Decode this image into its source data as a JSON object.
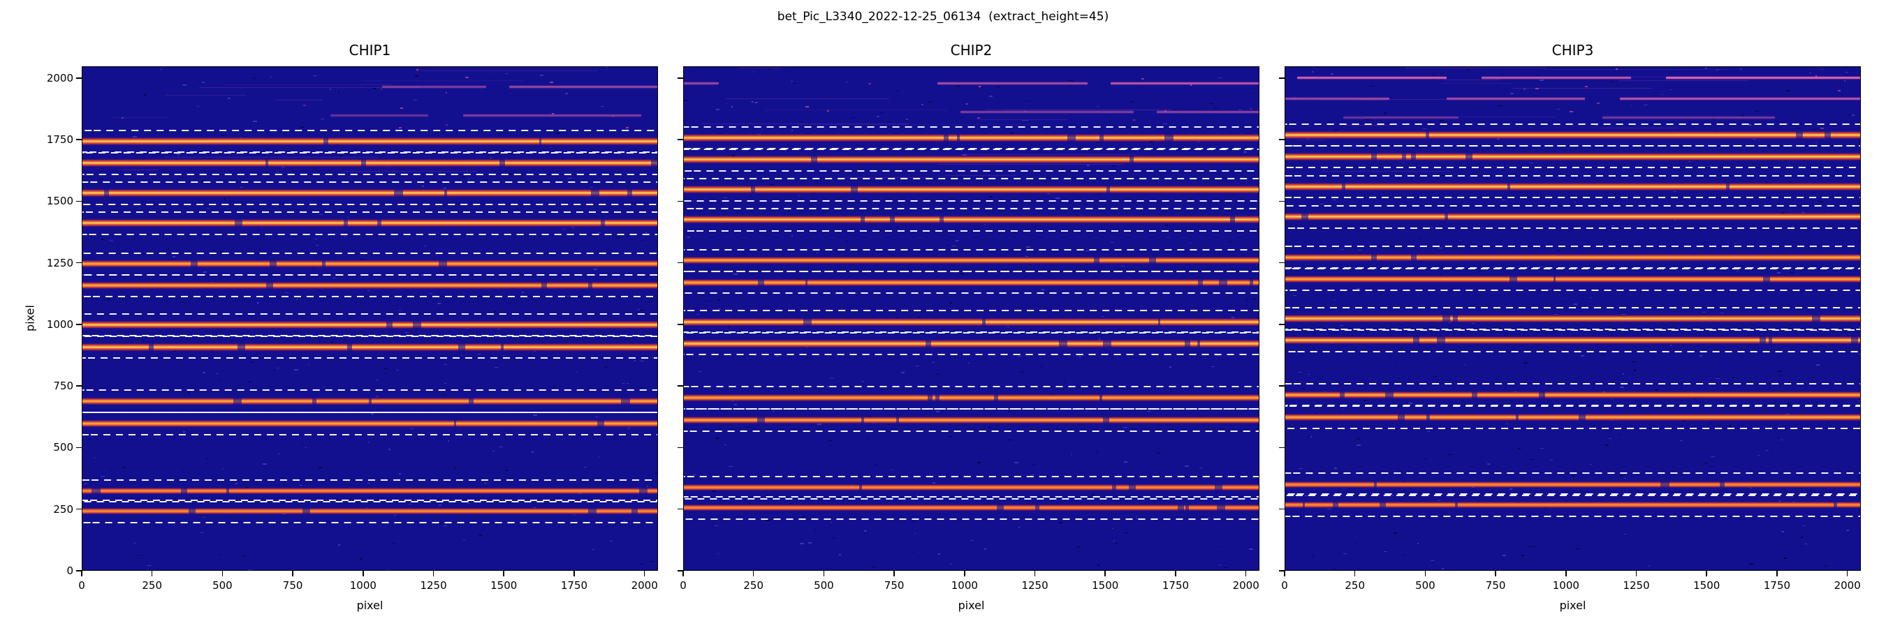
{
  "figure": {
    "suptitle": "bet_Pic_L3340_2022-12-25_06134  (extract_height=45)",
    "background": "#ffffff"
  },
  "axes": {
    "xlabel": "pixel",
    "ylabel": "pixel",
    "xlim": [
      0,
      2048
    ],
    "ylim": [
      0,
      2048
    ],
    "xticks": [
      0,
      250,
      500,
      750,
      1000,
      1250,
      1500,
      1750,
      2000
    ],
    "yticks": [
      0,
      250,
      500,
      750,
      1000,
      1250,
      1500,
      1750,
      2000
    ],
    "grid": false
  },
  "style": {
    "image_background": "#13108f",
    "order_core_bright": "#ffdf6b",
    "order_core_medium": "#ffb847",
    "order_core_dim": "#ff8f3a",
    "order_mid": "#f07022",
    "order_edge_rgba": "rgba(192,40,80,0.85)",
    "faint_emission": "#f0559f",
    "faint_emission_core": "#ff9ccf",
    "extraction_dash": "#ffffff",
    "axis_color": "#000000"
  },
  "extract_height": 45,
  "chart_data": {
    "type": "heatmap",
    "title": "bet_Pic_L3340_2022-12-25_06134  (extract_height=45)",
    "description": "Three echelle spectrograph detector frames (CHIP1, CHIP2, CHIP3) shown as 2048x2048 pixel images on a dark blue colormap. Bright horizontal yellow/orange stripes are spectral orders; white dashed lines mark the extraction window of half-height 45 pixels above and below each traced order. Faint pink/magenta partial lines appear near the top of each frame.",
    "xlabel": "pixel",
    "ylabel": "pixel",
    "panels": [
      {
        "title": "CHIP1",
        "show_y_tick_labels": true,
        "orders": [
          {
            "y": 1746,
            "strength": 1.0
          },
          {
            "y": 1658,
            "strength": 1.0
          },
          {
            "y": 1536,
            "strength": 1.0
          },
          {
            "y": 1414,
            "strength": 1.0
          },
          {
            "y": 1248,
            "strength": 0.8
          },
          {
            "y": 1160,
            "strength": 0.8
          },
          {
            "y": 1000,
            "strength": 1.0
          },
          {
            "y": 912,
            "strength": 1.0
          },
          {
            "y": 692,
            "strength": 0.9
          },
          {
            "y": 600,
            "strength": 0.9
          },
          {
            "y": 327,
            "strength": 0.65
          },
          {
            "y": 244,
            "strength": 0.65
          }
        ],
        "faint_orders": [
          {
            "y": 1968,
            "segments": [
              [
                0.52,
                0.7,
                0.45
              ],
              [
                0.74,
                1.0,
                0.55
              ]
            ]
          },
          {
            "y": 1850,
            "segments": [
              [
                0.43,
                0.6,
                0.35
              ],
              [
                0.66,
                0.97,
                0.45
              ]
            ]
          }
        ]
      },
      {
        "title": "CHIP2",
        "show_y_tick_labels": false,
        "orders": [
          {
            "y": 1760,
            "strength": 1.0
          },
          {
            "y": 1672,
            "strength": 1.0
          },
          {
            "y": 1550,
            "strength": 1.0
          },
          {
            "y": 1428,
            "strength": 1.0
          },
          {
            "y": 1262,
            "strength": 0.8
          },
          {
            "y": 1174,
            "strength": 0.8
          },
          {
            "y": 1014,
            "strength": 1.0
          },
          {
            "y": 926,
            "strength": 1.0
          },
          {
            "y": 706,
            "strength": 0.9
          },
          {
            "y": 614,
            "strength": 0.9
          },
          {
            "y": 341,
            "strength": 0.65
          },
          {
            "y": 258,
            "strength": 0.65
          }
        ],
        "faint_orders": [
          {
            "y": 1982,
            "segments": [
              [
                0.0,
                0.06,
                0.55
              ],
              [
                0.44,
                0.7,
                0.6
              ],
              [
                0.74,
                1.0,
                0.7
              ]
            ]
          },
          {
            "y": 1866,
            "segments": [
              [
                0.48,
                0.78,
                0.45
              ],
              [
                0.82,
                1.0,
                0.5
              ]
            ]
          }
        ]
      },
      {
        "title": "CHIP3",
        "show_y_tick_labels": false,
        "orders": [
          {
            "y": 1772,
            "strength": 1.0
          },
          {
            "y": 1684,
            "strength": 1.0
          },
          {
            "y": 1562,
            "strength": 1.0
          },
          {
            "y": 1440,
            "strength": 1.0
          },
          {
            "y": 1274,
            "strength": 0.8
          },
          {
            "y": 1186,
            "strength": 0.8
          },
          {
            "y": 1026,
            "strength": 1.0
          },
          {
            "y": 938,
            "strength": 1.0
          },
          {
            "y": 718,
            "strength": 0.9
          },
          {
            "y": 626,
            "strength": 0.9
          },
          {
            "y": 353,
            "strength": 0.65
          },
          {
            "y": 270,
            "strength": 0.65
          }
        ],
        "faint_orders": [
          {
            "y": 2004,
            "segments": [
              [
                0.02,
                0.28,
                0.8
              ],
              [
                0.34,
                0.6,
                0.7
              ],
              [
                0.66,
                1.0,
                0.85
              ]
            ]
          },
          {
            "y": 1918,
            "segments": [
              [
                0.0,
                0.18,
                0.55
              ],
              [
                0.28,
                0.52,
                0.6
              ],
              [
                0.58,
                1.0,
                0.7
              ]
            ]
          },
          {
            "y": 1842,
            "segments": [
              [
                0.1,
                0.3,
                0.35
              ],
              [
                0.55,
                0.85,
                0.4
              ]
            ]
          }
        ]
      }
    ]
  }
}
